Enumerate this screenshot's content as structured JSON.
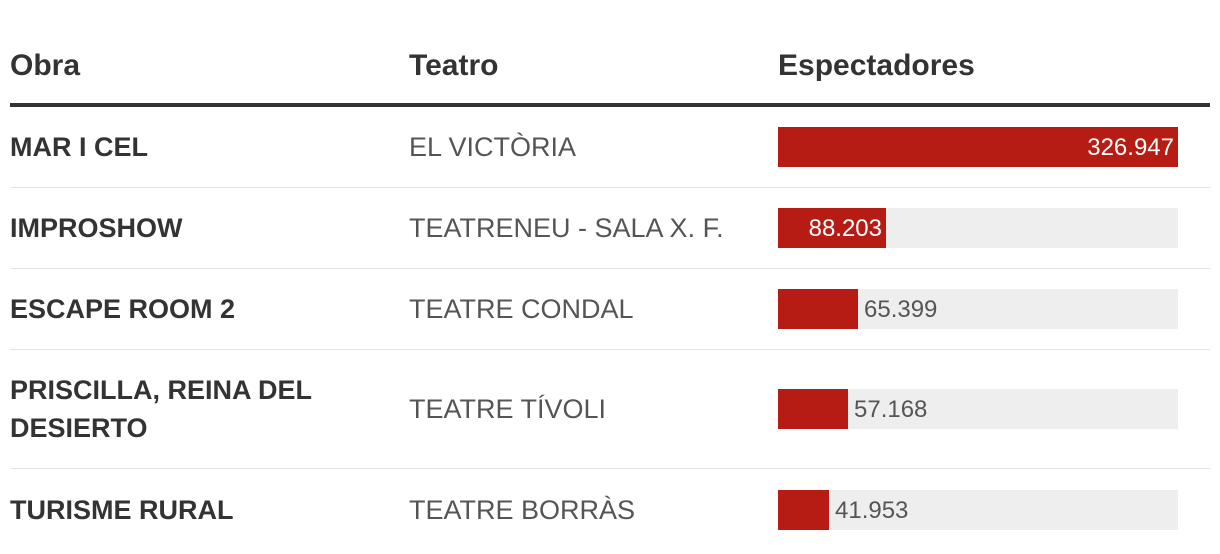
{
  "header": {
    "obra": "Obra",
    "teatro": "Teatro",
    "espectadores": "Espectadores"
  },
  "colors": {
    "bar": "#b71c14",
    "track": "#eeeeee",
    "text": "#333333"
  },
  "rows": [
    {
      "obra": "MAR I CEL",
      "teatro": "EL VICTÒRIA",
      "value": 326947,
      "label": "326.947"
    },
    {
      "obra": "IMPROSHOW",
      "teatro": "TEATRENEU - SALA X. F.",
      "value": 88203,
      "label": "88.203"
    },
    {
      "obra": "ESCAPE ROOM 2",
      "teatro": "TEATRE CONDAL",
      "value": 65399,
      "label": "65.399"
    },
    {
      "obra": "PRISCILLA, REINA DEL DESIERTO",
      "teatro": "TEATRE TÍVOLI",
      "value": 57168,
      "label": "57.168"
    },
    {
      "obra": "TURISME RURAL",
      "teatro": "TEATRE BORRÀS",
      "value": 41953,
      "label": "41.953"
    }
  ],
  "chart_data": {
    "type": "table",
    "columns": [
      "Obra",
      "Teatro",
      "Espectadores"
    ],
    "categories": [
      "MAR I CEL",
      "IMPROSHOW",
      "ESCAPE ROOM 2",
      "PRISCILLA, REINA DEL DESIERTO",
      "TURISME RURAL"
    ],
    "teatros": [
      "EL VICTÒRIA",
      "TEATRENEU - SALA X. F.",
      "TEATRE CONDAL",
      "TEATRE TÍVOLI",
      "TEATRE BORRÀS"
    ],
    "values": [
      326947,
      88203,
      65399,
      57168,
      41953
    ],
    "value_labels": [
      "326.947",
      "88.203",
      "65.399",
      "57.168",
      "41.953"
    ],
    "xlim": [
      0,
      326947
    ]
  }
}
